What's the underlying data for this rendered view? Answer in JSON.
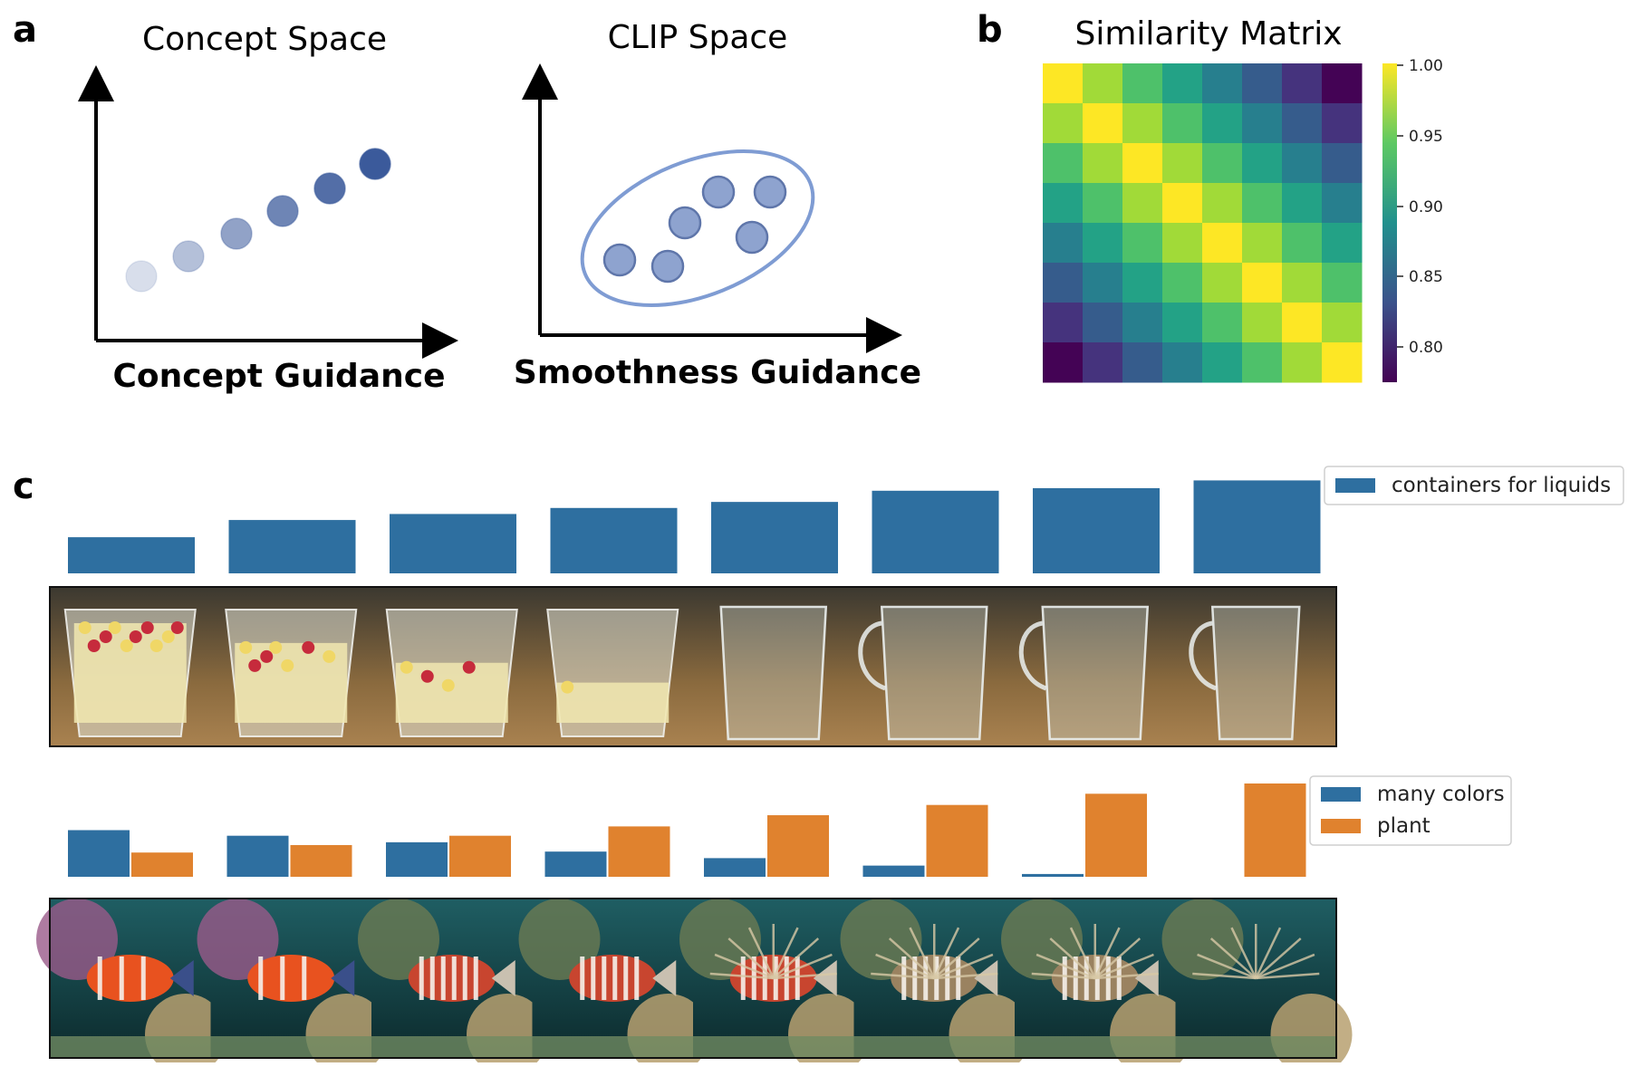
{
  "panel_a": {
    "letter": "a",
    "concept_title": "Concept Space",
    "concept_xlabel": "Concept Guidance",
    "clip_title": "CLIP Space",
    "clip_xlabel": "Smoothness Guidance",
    "point_color": "#3b5a9b",
    "ellipse_color": "#7f9cd3"
  },
  "panel_b": {
    "letter": "b",
    "title": "Similarity Matrix",
    "colormap": "viridis",
    "colorbar_ticks": [
      "1.00",
      "0.95",
      "0.90",
      "0.85",
      "0.80"
    ]
  },
  "panel_c": {
    "letter": "c",
    "row1": {
      "legend": [
        "containers for liquids"
      ],
      "series_color": "#2e6fa0",
      "values": [
        0.42,
        0.62,
        0.69,
        0.76,
        0.83,
        0.96,
        0.99,
        1.08
      ],
      "images": [
        "trifle-dessert-in-glass-bowl",
        "trifle-less-layered",
        "mostly-cream-bowl",
        "empty-glass-bowl",
        "glass-cup",
        "glass-pitcher",
        "glass-jug",
        "glass-jar"
      ]
    },
    "row2": {
      "legend": [
        "many colors",
        "plant"
      ],
      "series_colors": [
        "#2e6fa0",
        "#e0822e"
      ],
      "many_colors": [
        0.5,
        0.44,
        0.37,
        0.27,
        0.2,
        0.12,
        0.03,
        0.0
      ],
      "plant": [
        0.26,
        0.34,
        0.44,
        0.54,
        0.66,
        0.77,
        0.89,
        1.0
      ],
      "images": [
        "clownfish-coral",
        "clownfish-coral-2",
        "striped-fish",
        "striped-fish-2",
        "striped-fish-3",
        "spiky-fish",
        "spiky-fish-plant",
        "spiky-plant"
      ]
    }
  }
}
